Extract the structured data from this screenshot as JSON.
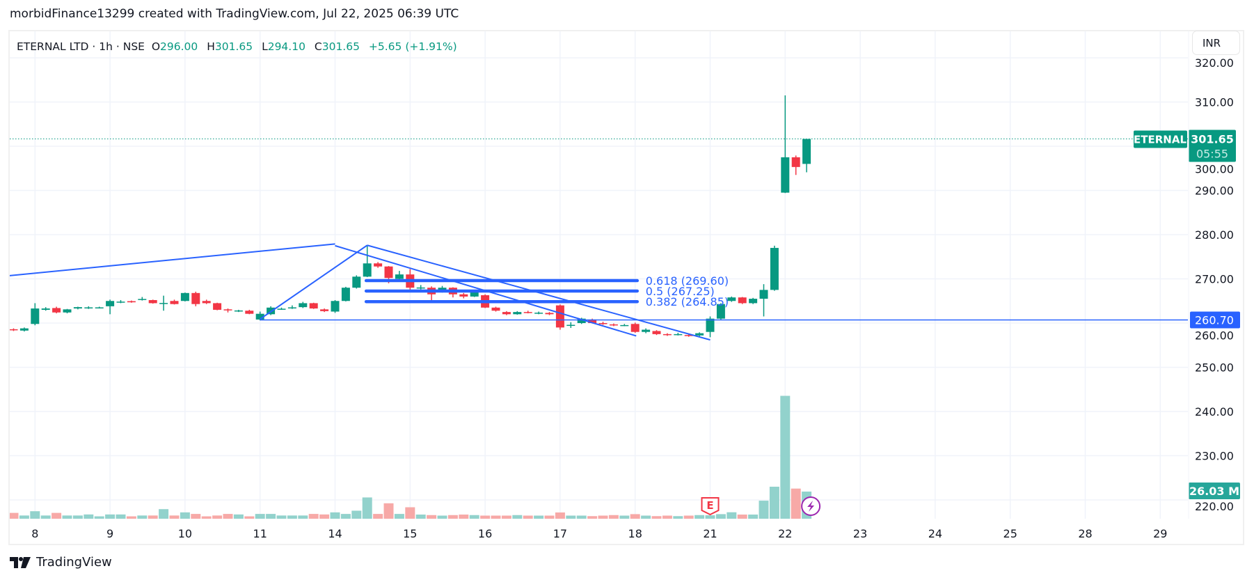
{
  "credit": "morbidFinance13299 created with TradingView.com, Jul 22, 2025 06:39 UTC",
  "legend": {
    "symbol": "ETERNAL LTD · 1h · NSE",
    "o_label": "O",
    "o": "296.00",
    "h_label": "H",
    "h": "301.65",
    "l_label": "L",
    "l": "294.10",
    "c_label": "C",
    "c": "301.65",
    "change": "+5.65 (+1.91%)"
  },
  "currency_button": "INR",
  "brand": "TradingView",
  "colors": {
    "up": "#089981",
    "down": "#f23645",
    "vol_up": "#92d2cc",
    "vol_down": "#f7a9a7",
    "drawing": "#2962ff",
    "earnings": "#f23645",
    "dividend": "#9c27b0"
  },
  "chart_data": {
    "type": "candlestick",
    "interval": "1h",
    "ylim": [
      215,
      321
    ],
    "y_ticks": [
      "320.00",
      "310.00",
      "300.00",
      "290.00",
      "280.00",
      "270.00",
      "260.00",
      "250.00",
      "240.00",
      "230.00",
      "220.00"
    ],
    "x_ticks": [
      "8",
      "9",
      "10",
      "11",
      "14",
      "15",
      "16",
      "17",
      "18",
      "21",
      "22",
      "23",
      "24",
      "25",
      "28",
      "29"
    ],
    "grid": true,
    "candles_ohlcv_millions": [
      [
        258.6,
        258.8,
        258.2,
        258.4,
        5.6
      ],
      [
        258.3,
        259.0,
        258.1,
        258.8,
        3.1
      ],
      [
        259.8,
        264.5,
        259.5,
        263.3,
        7.2
      ],
      [
        263.0,
        263.6,
        262.8,
        263.3,
        3.1
      ],
      [
        263.4,
        263.7,
        262.2,
        262.4,
        5.6
      ],
      [
        262.4,
        263.2,
        262.2,
        263.1,
        3.1
      ],
      [
        263.3,
        263.7,
        263.1,
        263.6,
        3.1
      ],
      [
        263.5,
        263.8,
        263.2,
        263.55,
        4.1
      ],
      [
        263.5,
        263.7,
        263.3,
        263.55,
        2.3
      ],
      [
        263.8,
        265.3,
        262.0,
        265.0,
        4.1
      ],
      [
        264.8,
        265.2,
        264.5,
        264.85,
        4.1
      ],
      [
        264.95,
        265.1,
        264.6,
        264.7,
        2.3
      ],
      [
        265.4,
        265.9,
        265.1,
        265.45,
        3.1
      ],
      [
        265.2,
        265.3,
        264.4,
        264.5,
        3.1
      ],
      [
        264.5,
        266.2,
        262.8,
        264.55,
        9.2
      ],
      [
        265.0,
        265.3,
        264.2,
        264.3,
        3.1
      ],
      [
        265.0,
        266.9,
        264.9,
        266.8,
        6.1
      ],
      [
        266.8,
        267.1,
        263.8,
        264.3,
        4.6
      ],
      [
        265.0,
        265.3,
        264.3,
        264.5,
        2.3
      ],
      [
        264.5,
        264.6,
        262.9,
        263.0,
        3.1
      ],
      [
        263.1,
        263.3,
        262.4,
        263.0,
        4.6
      ],
      [
        262.8,
        263.0,
        262.5,
        262.85,
        4.1
      ],
      [
        262.8,
        263.0,
        262.0,
        262.1,
        2.3
      ],
      [
        260.8,
        262.6,
        260.6,
        262.1,
        4.6
      ],
      [
        262.0,
        263.8,
        261.8,
        263.5,
        4.6
      ],
      [
        263.2,
        263.5,
        263.0,
        263.25,
        3.1
      ],
      [
        263.5,
        264.0,
        263.2,
        263.55,
        3.1
      ],
      [
        263.6,
        264.8,
        263.4,
        264.5,
        3.1
      ],
      [
        264.5,
        264.6,
        263.2,
        263.3,
        4.6
      ],
      [
        263.1,
        263.3,
        262.5,
        262.7,
        4.1
      ],
      [
        262.6,
        265.2,
        262.3,
        265.0,
        6.1
      ],
      [
        265.0,
        268.2,
        264.9,
        268.0,
        4.6
      ],
      [
        268.0,
        270.8,
        267.8,
        270.5,
        7.7
      ],
      [
        270.5,
        277.6,
        270.4,
        273.5,
        20.4
      ],
      [
        273.5,
        273.8,
        272.5,
        272.8,
        4.6
      ],
      [
        272.8,
        272.9,
        269.0,
        270.2,
        14.8
      ],
      [
        270.0,
        271.8,
        269.9,
        271.0,
        4.6
      ],
      [
        271.0,
        272.2,
        267.2,
        268.0,
        11.0
      ],
      [
        268.0,
        268.6,
        267.6,
        268.05,
        4.0
      ],
      [
        268.0,
        268.3,
        265.0,
        266.5,
        3.5
      ],
      [
        267.0,
        268.4,
        266.9,
        268.0,
        3.0
      ],
      [
        268.0,
        268.1,
        265.8,
        266.5,
        3.5
      ],
      [
        266.5,
        266.8,
        265.6,
        266.0,
        4.0
      ],
      [
        266.0,
        267.2,
        265.9,
        267.0,
        3.5
      ],
      [
        266.3,
        266.5,
        263.4,
        263.5,
        3.0
      ],
      [
        263.5,
        263.7,
        262.6,
        262.8,
        3.0
      ],
      [
        262.5,
        262.7,
        261.8,
        262.0,
        3.0
      ],
      [
        262.0,
        262.7,
        261.9,
        262.5,
        3.5
      ],
      [
        262.5,
        262.8,
        262.2,
        262.3,
        3.0
      ],
      [
        262.3,
        262.6,
        262.0,
        262.35,
        3.0
      ],
      [
        262.3,
        262.5,
        261.8,
        262.0,
        3.0
      ],
      [
        264.0,
        264.2,
        258.5,
        259.0,
        6.0
      ],
      [
        259.5,
        260.2,
        258.9,
        259.6,
        3.0
      ],
      [
        260.0,
        261.2,
        259.8,
        261.0,
        3.0
      ],
      [
        260.8,
        261.0,
        259.9,
        260.0,
        2.5
      ],
      [
        260.0,
        260.3,
        259.6,
        259.8,
        3.0
      ],
      [
        259.7,
        259.9,
        259.3,
        259.5,
        3.5
      ],
      [
        259.5,
        259.8,
        259.3,
        259.55,
        3.0
      ],
      [
        259.8,
        260.1,
        257.8,
        258.0,
        4.4
      ],
      [
        258.0,
        258.8,
        257.7,
        258.5,
        3.0
      ],
      [
        258.2,
        258.4,
        257.3,
        257.5,
        2.5
      ],
      [
        257.5,
        257.7,
        257.1,
        257.3,
        3.0
      ],
      [
        257.3,
        257.8,
        257.2,
        257.5,
        2.5
      ],
      [
        257.3,
        257.5,
        256.9,
        257.1,
        3.0
      ],
      [
        257.2,
        257.9,
        257.0,
        257.7,
        3.5
      ],
      [
        258.0,
        261.5,
        256.8,
        261.0,
        3.3
      ],
      [
        261.0,
        264.5,
        260.8,
        264.3,
        4.4
      ],
      [
        265.0,
        266.0,
        264.8,
        265.8,
        6.2
      ],
      [
        265.8,
        265.9,
        264.3,
        264.5,
        4.0
      ],
      [
        264.5,
        265.7,
        264.3,
        265.5,
        4.0
      ],
      [
        265.5,
        268.8,
        261.5,
        267.5,
        17.3
      ],
      [
        267.5,
        277.5,
        267.3,
        277.0,
        30.7
      ],
      [
        289.5,
        311.5,
        289.4,
        297.5,
        117.8
      ],
      [
        297.5,
        297.9,
        293.5,
        295.3,
        28.9
      ],
      [
        296.0,
        301.65,
        294.1,
        301.65,
        26.03
      ]
    ],
    "last_price_label": {
      "symbol": "ETERNAL",
      "price": "301.65",
      "countdown": "05:55"
    },
    "volume_label": "26.03 M",
    "markers": [
      {
        "type": "earnings",
        "text": "E",
        "x_tick": "21"
      },
      {
        "type": "dividend",
        "icon": "lightning-icon",
        "x_tick": "22"
      }
    ],
    "drawings": {
      "trend_lines": [
        {
          "from": [
            -0.5,
            270.7
          ],
          "to": [
            30,
            277.9
          ]
        },
        {
          "from": [
            30,
            277.5
          ],
          "to": [
            58.1,
            257.1
          ]
        },
        {
          "from": [
            33,
            277.6
          ],
          "to": [
            65,
            256.2
          ]
        },
        {
          "from": [
            23,
            260.9
          ],
          "to": [
            33,
            277.6
          ]
        }
      ],
      "horizontal_line": {
        "price": 260.7,
        "label": "260.70"
      },
      "fib_retracement": [
        {
          "level": "0.618",
          "price": 269.6,
          "label": "0.618 (269.60)"
        },
        {
          "level": "0.5",
          "price": 267.25,
          "label": "0.5 (267.25)"
        },
        {
          "level": "0.382",
          "price": 264.85,
          "label": "0.382 (264.85)"
        }
      ]
    }
  }
}
